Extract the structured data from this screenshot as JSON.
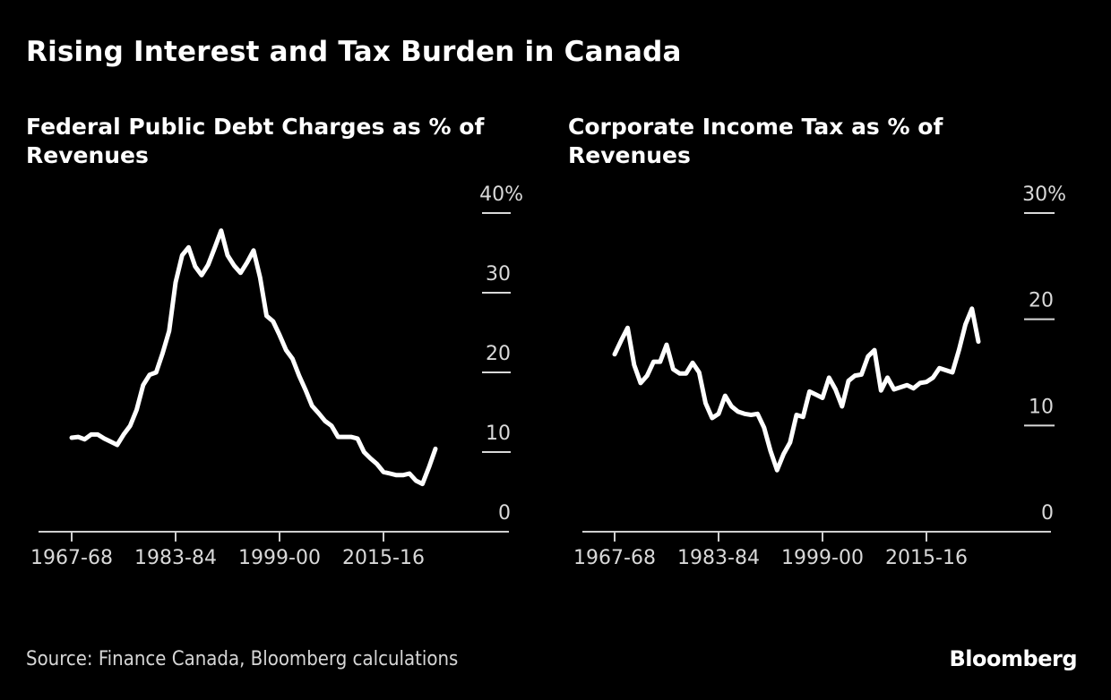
{
  "title": "Rising Interest and Tax Burden in Canada",
  "source": "Source: Finance Canada, Bloomberg calculations",
  "brand": "Bloomberg",
  "chart_data": [
    {
      "type": "line",
      "title": "Federal Public Debt Charges as % of Revenues",
      "xlabel": "",
      "ylabel": "",
      "unit": "%",
      "ylim": [
        0,
        40
      ],
      "yticks": [
        0,
        10,
        20,
        30,
        40
      ],
      "ytick_labels": [
        "0",
        "10",
        "20",
        "30",
        "40%"
      ],
      "xticks": [
        "1967-68",
        "1983-84",
        "1999-00",
        "2015-16"
      ],
      "xtick_years": [
        1967,
        1983,
        1999,
        2015
      ],
      "xlim": [
        1962,
        2034
      ],
      "grid": false,
      "y_axis_position": "right",
      "x": [
        1967,
        1968,
        1969,
        1970,
        1971,
        1972,
        1973,
        1974,
        1975,
        1976,
        1977,
        1978,
        1979,
        1980,
        1981,
        1982,
        1983,
        1984,
        1985,
        1986,
        1987,
        1988,
        1989,
        1990,
        1991,
        1992,
        1993,
        1994,
        1995,
        1996,
        1997,
        1998,
        1999,
        2000,
        2001,
        2002,
        2003,
        2004,
        2005,
        2006,
        2007,
        2008,
        2009,
        2010,
        2011,
        2012,
        2013,
        2014,
        2015,
        2016,
        2017,
        2018,
        2019,
        2020,
        2021,
        2022,
        2023
      ],
      "values": [
        11.8,
        11.9,
        11.6,
        12.2,
        12.2,
        11.7,
        11.3,
        10.9,
        12.2,
        13.3,
        15.3,
        18.4,
        19.7,
        20.0,
        22.4,
        25.2,
        31.3,
        34.7,
        35.7,
        33.3,
        32.2,
        33.5,
        35.6,
        37.8,
        34.7,
        33.4,
        32.5,
        33.8,
        35.3,
        31.9,
        27.1,
        26.4,
        24.7,
        22.8,
        21.7,
        19.6,
        17.8,
        15.8,
        14.9,
        13.9,
        13.3,
        11.9,
        11.9,
        11.9,
        11.7,
        10.0,
        9.2,
        8.5,
        7.5,
        7.3,
        7.1,
        7.1,
        7.3,
        6.4,
        6.0,
        8.1,
        10.4
      ]
    },
    {
      "type": "line",
      "title": "Corporate Income Tax as % of Revenues",
      "xlabel": "",
      "ylabel": "",
      "unit": "%",
      "ylim": [
        0,
        30
      ],
      "yticks": [
        0,
        10,
        20,
        30
      ],
      "ytick_labels": [
        "0",
        "10",
        "20",
        "30%"
      ],
      "xticks": [
        "1967-68",
        "1983-84",
        "1999-00",
        "2015-16"
      ],
      "xtick_years": [
        1967,
        1983,
        1999,
        2015
      ],
      "xlim": [
        1962,
        2034
      ],
      "grid": false,
      "y_axis_position": "right",
      "x": [
        1967,
        1968,
        1969,
        1970,
        1971,
        1972,
        1973,
        1974,
        1975,
        1976,
        1977,
        1978,
        1979,
        1980,
        1981,
        1982,
        1983,
        1984,
        1985,
        1986,
        1987,
        1988,
        1989,
        1990,
        1991,
        1992,
        1993,
        1994,
        1995,
        1996,
        1997,
        1998,
        1999,
        2000,
        2001,
        2002,
        2003,
        2004,
        2005,
        2006,
        2007,
        2008,
        2009,
        2010,
        2011,
        2012,
        2013,
        2014,
        2015,
        2016,
        2017,
        2018,
        2019,
        2020,
        2021,
        2022,
        2023
      ],
      "values": [
        16.7,
        18.0,
        19.2,
        15.7,
        14.0,
        14.7,
        16.0,
        16.0,
        17.6,
        15.3,
        14.9,
        14.9,
        15.9,
        15.0,
        12.1,
        10.7,
        11.1,
        12.8,
        11.8,
        11.3,
        11.1,
        11.0,
        11.1,
        9.8,
        7.6,
        5.8,
        7.3,
        8.4,
        11.0,
        10.8,
        13.2,
        12.9,
        12.6,
        14.5,
        13.4,
        11.8,
        14.2,
        14.7,
        14.8,
        16.5,
        17.1,
        13.3,
        14.5,
        13.4,
        13.6,
        13.8,
        13.5,
        14.0,
        14.1,
        14.5,
        15.4,
        15.2,
        15.0,
        17.1,
        19.5,
        21.0,
        17.9
      ]
    }
  ]
}
